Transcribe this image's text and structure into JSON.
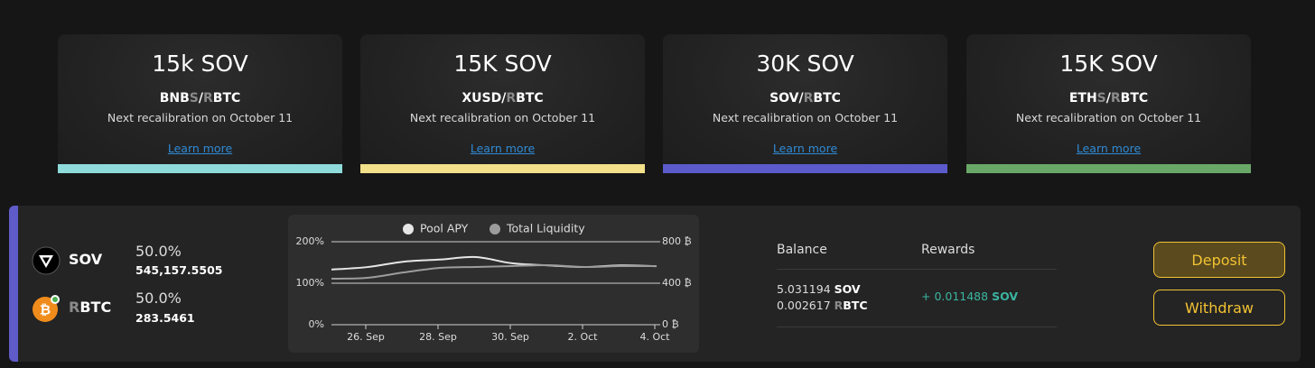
{
  "cards": [
    {
      "title": "15k SOV",
      "pair": [
        {
          "text": "BNB"
        },
        {
          "text": "S",
          "muted": true
        },
        {
          "text": "/"
        },
        {
          "text": "R",
          "muted": true
        },
        {
          "text": "BTC"
        }
      ],
      "note": "Next recalibration on October 11",
      "link": "Learn more",
      "color": "#8fdada"
    },
    {
      "title": "15K SOV",
      "pair": [
        {
          "text": "XUSD"
        },
        {
          "text": "/"
        },
        {
          "text": "R",
          "muted": true
        },
        {
          "text": "BTC"
        }
      ],
      "note": "Next recalibration on October 11",
      "link": "Learn more",
      "color": "#f2e08a"
    },
    {
      "title": "30K SOV",
      "pair": [
        {
          "text": "SOV"
        },
        {
          "text": "/"
        },
        {
          "text": "R",
          "muted": true
        },
        {
          "text": "BTC"
        }
      ],
      "note": "Next recalibration on October 11",
      "link": "Learn more",
      "color": "#5b5bcc"
    },
    {
      "title": "15K SOV",
      "pair": [
        {
          "text": "ETH"
        },
        {
          "text": "S",
          "muted": true
        },
        {
          "text": "/"
        },
        {
          "text": "R",
          "muted": true
        },
        {
          "text": "BTC"
        }
      ],
      "note": "Next recalibration on October 11",
      "link": "Learn more",
      "color": "#6aa868"
    }
  ],
  "pool": {
    "accent": "#5f5bc9",
    "tokens": [
      {
        "name": [
          {
            "text": "SOV"
          }
        ],
        "share": "50.0%",
        "amount": "545,157.5505"
      },
      {
        "name": [
          {
            "text": "R",
            "muted": true
          },
          {
            "text": "BTC"
          }
        ],
        "share": "50.0%",
        "amount": "283.5461"
      }
    ]
  },
  "chart_data": {
    "type": "line",
    "categories": [
      null,
      "26. Sep",
      null,
      "28. Sep",
      null,
      "30. Sep",
      null,
      "2. Oct",
      null,
      "4. Oct"
    ],
    "series": [
      {
        "name": "Pool APY",
        "color": "#e6e6e6",
        "axis": "y",
        "values": [
          133,
          139,
          152,
          157,
          163,
          148,
          143,
          139,
          143,
          141
        ]
      },
      {
        "name": "Total Liquidity",
        "color": "#9c9c9c",
        "axis": "y2",
        "values": [
          443,
          452,
          504,
          548,
          557,
          565,
          574,
          557,
          565,
          565
        ]
      }
    ],
    "ylim": [
      0,
      200
    ],
    "yticks": [
      {
        "value": 0,
        "label": "0%"
      },
      {
        "value": 100,
        "label": "100%"
      },
      {
        "value": 200,
        "label": "200%"
      }
    ],
    "y2lim": [
      0,
      800
    ],
    "y2ticks": [
      {
        "value": 0,
        "label": "0 ₿"
      },
      {
        "value": 400,
        "label": "400 ₿"
      },
      {
        "value": 800,
        "label": "800 ₿"
      }
    ],
    "grid": true,
    "legend": "top"
  },
  "balance": {
    "header": "Balance",
    "lines": [
      {
        "amount": "5.031194",
        "unit": [
          {
            "text": "SOV"
          }
        ]
      },
      {
        "amount": "0.002617",
        "unit": [
          {
            "text": "R",
            "muted": true
          },
          {
            "text": "BTC"
          }
        ]
      }
    ]
  },
  "rewards": {
    "header": "Rewards",
    "amount": "+ 0.011488",
    "unit": "SOV"
  },
  "buttons": [
    "Deposit",
    "Withdraw"
  ]
}
